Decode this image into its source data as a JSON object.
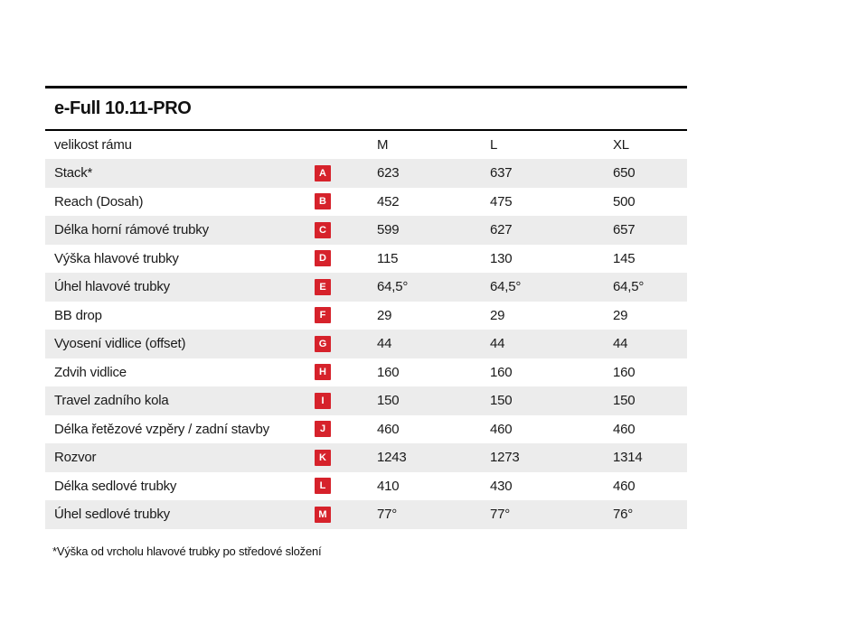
{
  "title": "e-Full 10.11-PRO",
  "colors": {
    "accent_red": "#d6222b",
    "row_stripe": "#ececec",
    "rule": "#000000",
    "text": "#1a1a1a"
  },
  "table": {
    "header": {
      "label": "velikost rámu",
      "sizes": [
        "M",
        "L",
        "XL"
      ]
    },
    "rows": [
      {
        "label": "Stack*",
        "badge": "A",
        "values": [
          "623",
          "637",
          "650"
        ]
      },
      {
        "label": "Reach (Dosah)",
        "badge": "B",
        "values": [
          "452",
          "475",
          "500"
        ]
      },
      {
        "label": "Délka horní rámové trubky",
        "badge": "C",
        "values": [
          "599",
          "627",
          "657"
        ]
      },
      {
        "label": "Výška hlavové trubky",
        "badge": "D",
        "values": [
          "115",
          "130",
          "145"
        ]
      },
      {
        "label": "Úhel hlavové trubky",
        "badge": "E",
        "values": [
          "64,5°",
          "64,5°",
          "64,5°"
        ]
      },
      {
        "label": "BB drop",
        "badge": "F",
        "values": [
          "29",
          "29",
          "29"
        ]
      },
      {
        "label": "Vyosení vidlice (offset)",
        "badge": "G",
        "values": [
          "44",
          "44",
          "44"
        ]
      },
      {
        "label": "Zdvih vidlice",
        "badge": "H",
        "values": [
          "160",
          "160",
          "160"
        ]
      },
      {
        "label": "Travel zadního kola",
        "badge": "I",
        "values": [
          "150",
          "150",
          "150"
        ]
      },
      {
        "label": "Délka řetězové vzpěry / zadní stavby",
        "badge": "J",
        "values": [
          "460",
          "460",
          "460"
        ]
      },
      {
        "label": "Rozvor",
        "badge": "K",
        "values": [
          "1243",
          "1273",
          "1314"
        ]
      },
      {
        "label": "Délka sedlové trubky",
        "badge": "L",
        "values": [
          "410",
          "430",
          "460"
        ]
      },
      {
        "label": "Úhel sedlové trubky",
        "badge": "M",
        "values": [
          "77°",
          "77°",
          "76°"
        ]
      }
    ]
  },
  "footnote": "*Výška od vrcholu hlavové trubky po středové složení"
}
